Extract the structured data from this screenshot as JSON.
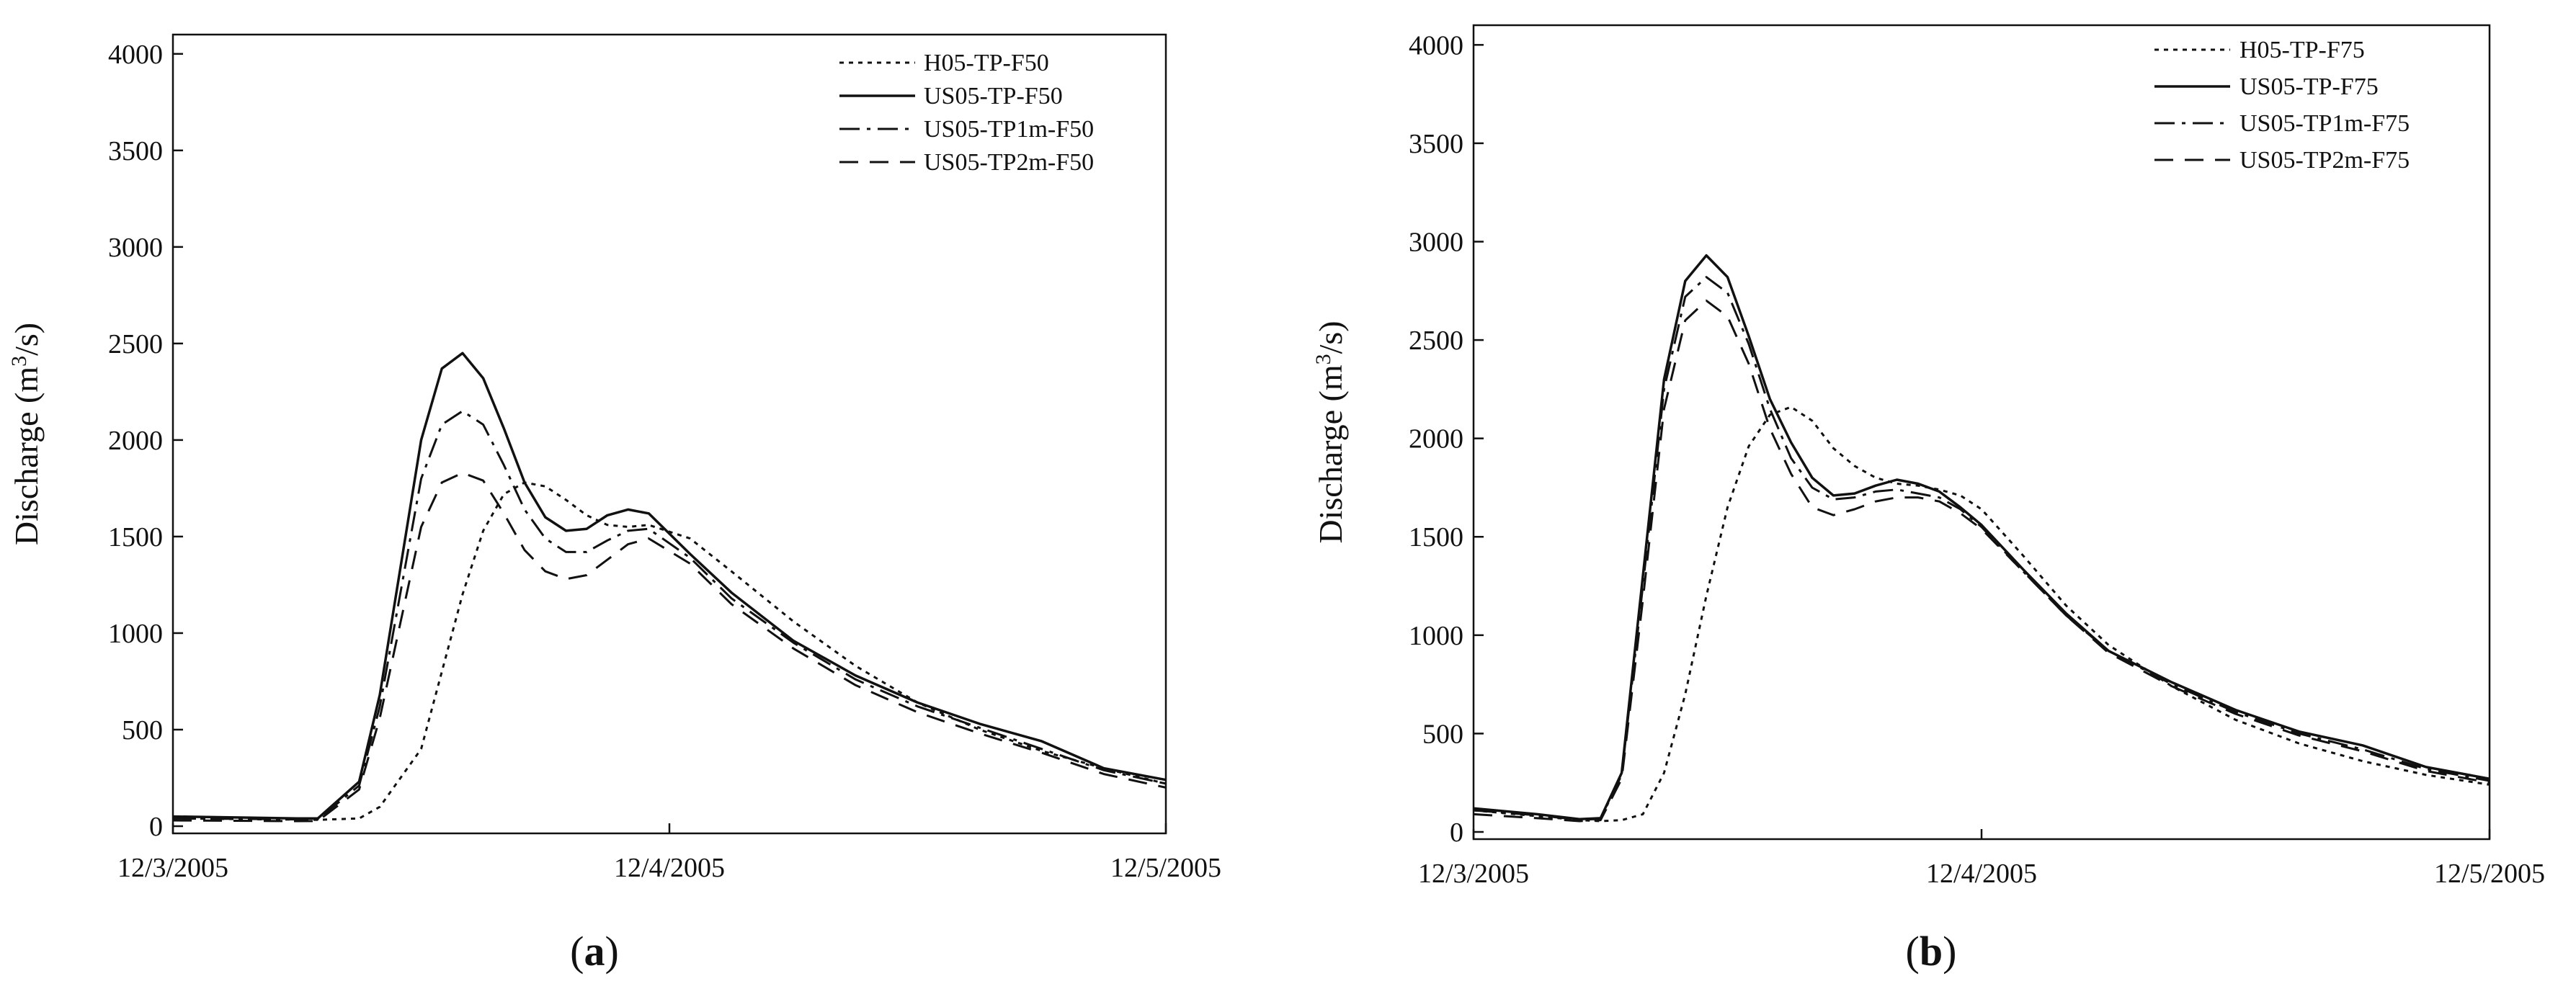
{
  "figure": {
    "panels": [
      {
        "label": "a"
      },
      {
        "label": "b"
      }
    ],
    "line_color": "#111111"
  },
  "chart_data": [
    {
      "type": "line",
      "panel_label": "(a)",
      "xlabel": "",
      "ylabel": "Discharge (m3/s)",
      "ylabel_parts": {
        "before": "Discharge (m",
        "sup": "3",
        "after": "/s)"
      },
      "x_tick_labels": [
        "12/3/2005",
        "12/4/2005",
        "12/5/2005"
      ],
      "y_ticks": [
        0,
        500,
        1000,
        1500,
        2000,
        2500,
        3000,
        3500,
        4000
      ],
      "xlim": [
        "12/3/2005 00:00",
        "12/5/2005 00:00"
      ],
      "ylim": [
        0,
        4100
      ],
      "grid": false,
      "legend_position": "top-right",
      "x": [
        "12/3/2005 00:00",
        "12/3/2005 03:00",
        "12/3/2005 06:00",
        "12/3/2005 07:00",
        "12/3/2005 09:00",
        "12/3/2005 10:00",
        "12/3/2005 12:00",
        "12/3/2005 13:00",
        "12/3/2005 14:00",
        "12/3/2005 15:00",
        "12/3/2005 16:00",
        "12/3/2005 17:00",
        "12/3/2005 18:00",
        "12/3/2005 19:00",
        "12/3/2005 20:00",
        "12/3/2005 21:00",
        "12/3/2005 22:00",
        "12/3/2005 23:00",
        "12/4/2005 01:00",
        "12/4/2005 03:00",
        "12/4/2005 06:00",
        "12/4/2005 09:00",
        "12/4/2005 12:00",
        "12/4/2005 15:00",
        "12/4/2005 18:00",
        "12/4/2005 21:00",
        "12/5/2005 00:00"
      ],
      "series": [
        {
          "name": "H05-TP-F50",
          "dash": "dotted",
          "values": [
            40,
            37,
            34,
            33,
            40,
            100,
            400,
            800,
            1200,
            1530,
            1720,
            1780,
            1760,
            1690,
            1610,
            1560,
            1550,
            1560,
            1490,
            1320,
            1060,
            830,
            640,
            500,
            390,
            300,
            220
          ]
        },
        {
          "name": "US05-TP-F50",
          "dash": "solid",
          "values": [
            50,
            45,
            40,
            40,
            230,
            680,
            2000,
            2370,
            2450,
            2320,
            2060,
            1780,
            1600,
            1530,
            1540,
            1610,
            1640,
            1620,
            1410,
            1210,
            960,
            780,
            640,
            530,
            440,
            300,
            240
          ]
        },
        {
          "name": "US05-TP1m-F50",
          "dash": "dashdot",
          "values": [
            40,
            38,
            35,
            35,
            210,
            620,
            1800,
            2080,
            2150,
            2080,
            1870,
            1640,
            1490,
            1420,
            1420,
            1480,
            1530,
            1540,
            1390,
            1180,
            950,
            760,
            620,
            510,
            400,
            290,
            220
          ]
        },
        {
          "name": "US05-TP2m-F50",
          "dash": "dashed",
          "values": [
            30,
            28,
            26,
            27,
            190,
            560,
            1550,
            1780,
            1830,
            1790,
            1620,
            1430,
            1320,
            1280,
            1300,
            1380,
            1460,
            1490,
            1360,
            1150,
            920,
            730,
            590,
            480,
            380,
            270,
            200
          ]
        }
      ]
    },
    {
      "type": "line",
      "panel_label": "(b)",
      "xlabel": "",
      "ylabel": "Discharge (m3/s)",
      "ylabel_parts": {
        "before": "Discharge (m",
        "sup": "3",
        "after": "/s)"
      },
      "x_tick_labels": [
        "12/3/2005",
        "12/4/2005",
        "12/5/2005"
      ],
      "y_ticks": [
        0,
        500,
        1000,
        1500,
        2000,
        2500,
        3000,
        3500,
        4000
      ],
      "xlim": [
        "12/3/2005 00:00",
        "12/5/2005 00:00"
      ],
      "ylim": [
        0,
        4100
      ],
      "grid": false,
      "legend_position": "top-right",
      "x": [
        "12/3/2005 00:00",
        "12/3/2005 03:00",
        "12/3/2005 05:00",
        "12/3/2005 06:00",
        "12/3/2005 07:00",
        "12/3/2005 08:00",
        "12/3/2005 09:00",
        "12/3/2005 10:00",
        "12/3/2005 11:00",
        "12/3/2005 12:00",
        "12/3/2005 13:00",
        "12/3/2005 14:00",
        "12/3/2005 15:00",
        "12/3/2005 16:00",
        "12/3/2005 17:00",
        "12/3/2005 18:00",
        "12/3/2005 19:00",
        "12/3/2005 20:00",
        "12/3/2005 21:00",
        "12/3/2005 22:00",
        "12/3/2005 23:00",
        "12/4/2005 00:00",
        "12/4/2005 02:00",
        "12/4/2005 04:00",
        "12/4/2005 06:00",
        "12/4/2005 09:00",
        "12/4/2005 12:00",
        "12/4/2005 15:00",
        "12/4/2005 18:00",
        "12/4/2005 21:00",
        "12/5/2005 00:00"
      ],
      "series": [
        {
          "name": "H05-TP-F75",
          "dash": "dotted",
          "values": [
            110,
            80,
            60,
            55,
            60,
            90,
            300,
            700,
            1200,
            1650,
            1960,
            2120,
            2160,
            2090,
            1950,
            1860,
            1800,
            1770,
            1760,
            1740,
            1710,
            1640,
            1400,
            1150,
            950,
            740,
            570,
            450,
            360,
            290,
            240
          ]
        },
        {
          "name": "US05-TP-F75",
          "dash": "solid",
          "values": [
            120,
            90,
            65,
            70,
            300,
            1300,
            2300,
            2800,
            2930,
            2820,
            2520,
            2200,
            1980,
            1800,
            1710,
            1720,
            1760,
            1790,
            1770,
            1730,
            1650,
            1560,
            1330,
            1110,
            920,
            760,
            620,
            510,
            440,
            330,
            270
          ]
        },
        {
          "name": "US05-TP1m-F75",
          "dash": "dashdot",
          "values": [
            110,
            85,
            62,
            66,
            290,
            1250,
            2250,
            2720,
            2820,
            2740,
            2480,
            2150,
            1900,
            1750,
            1690,
            1700,
            1730,
            1740,
            1720,
            1700,
            1640,
            1550,
            1320,
            1100,
            920,
            750,
            610,
            500,
            420,
            320,
            260
          ]
        },
        {
          "name": "US05-TP2m-F75",
          "dash": "dashed",
          "values": [
            90,
            70,
            55,
            60,
            270,
            1180,
            2150,
            2600,
            2700,
            2620,
            2380,
            2050,
            1820,
            1650,
            1610,
            1640,
            1680,
            1700,
            1700,
            1680,
            1620,
            1540,
            1320,
            1100,
            910,
            740,
            600,
            490,
            410,
            310,
            250
          ]
        }
      ]
    }
  ]
}
